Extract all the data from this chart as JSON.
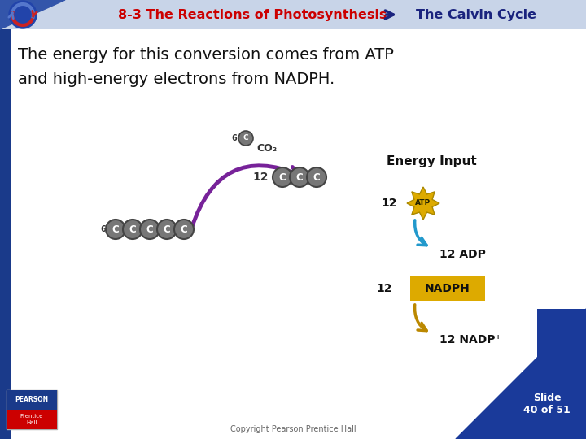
{
  "title_left": "8-3 The Reactions of Photosynthesis",
  "title_right": "The Calvin Cycle",
  "title_left_color": "#cc0000",
  "title_right_color": "#1a237e",
  "header_bg": "#c8d4e8",
  "bg_color": "#ffffff",
  "body_text_line1": "The energy for this conversion comes from ATP",
  "body_text_line2": "and high-energy electrons from NADPH.",
  "body_text_color": "#111111",
  "energy_input_label": "Energy Input",
  "co2_label": "CO₂",
  "atp_arrow_color": "#2299cc",
  "nadph_arrow_color": "#bb8800",
  "purple_arrow_color": "#772299",
  "circle_color": "#777777",
  "circle_outline": "#444444",
  "atp_starburst_color": "#ddaa00",
  "nadph_box_color": "#ddaa00",
  "copyright_text": "Copyright Pearson Prentice Hall",
  "slide_text": "Slide\n40 of 51",
  "left_bar_color": "#1a3a8a",
  "bottom_right_color": "#1a3a9a",
  "pearson_top_color": "#1a3a8a",
  "pearson_bottom_color": "#cc0000"
}
